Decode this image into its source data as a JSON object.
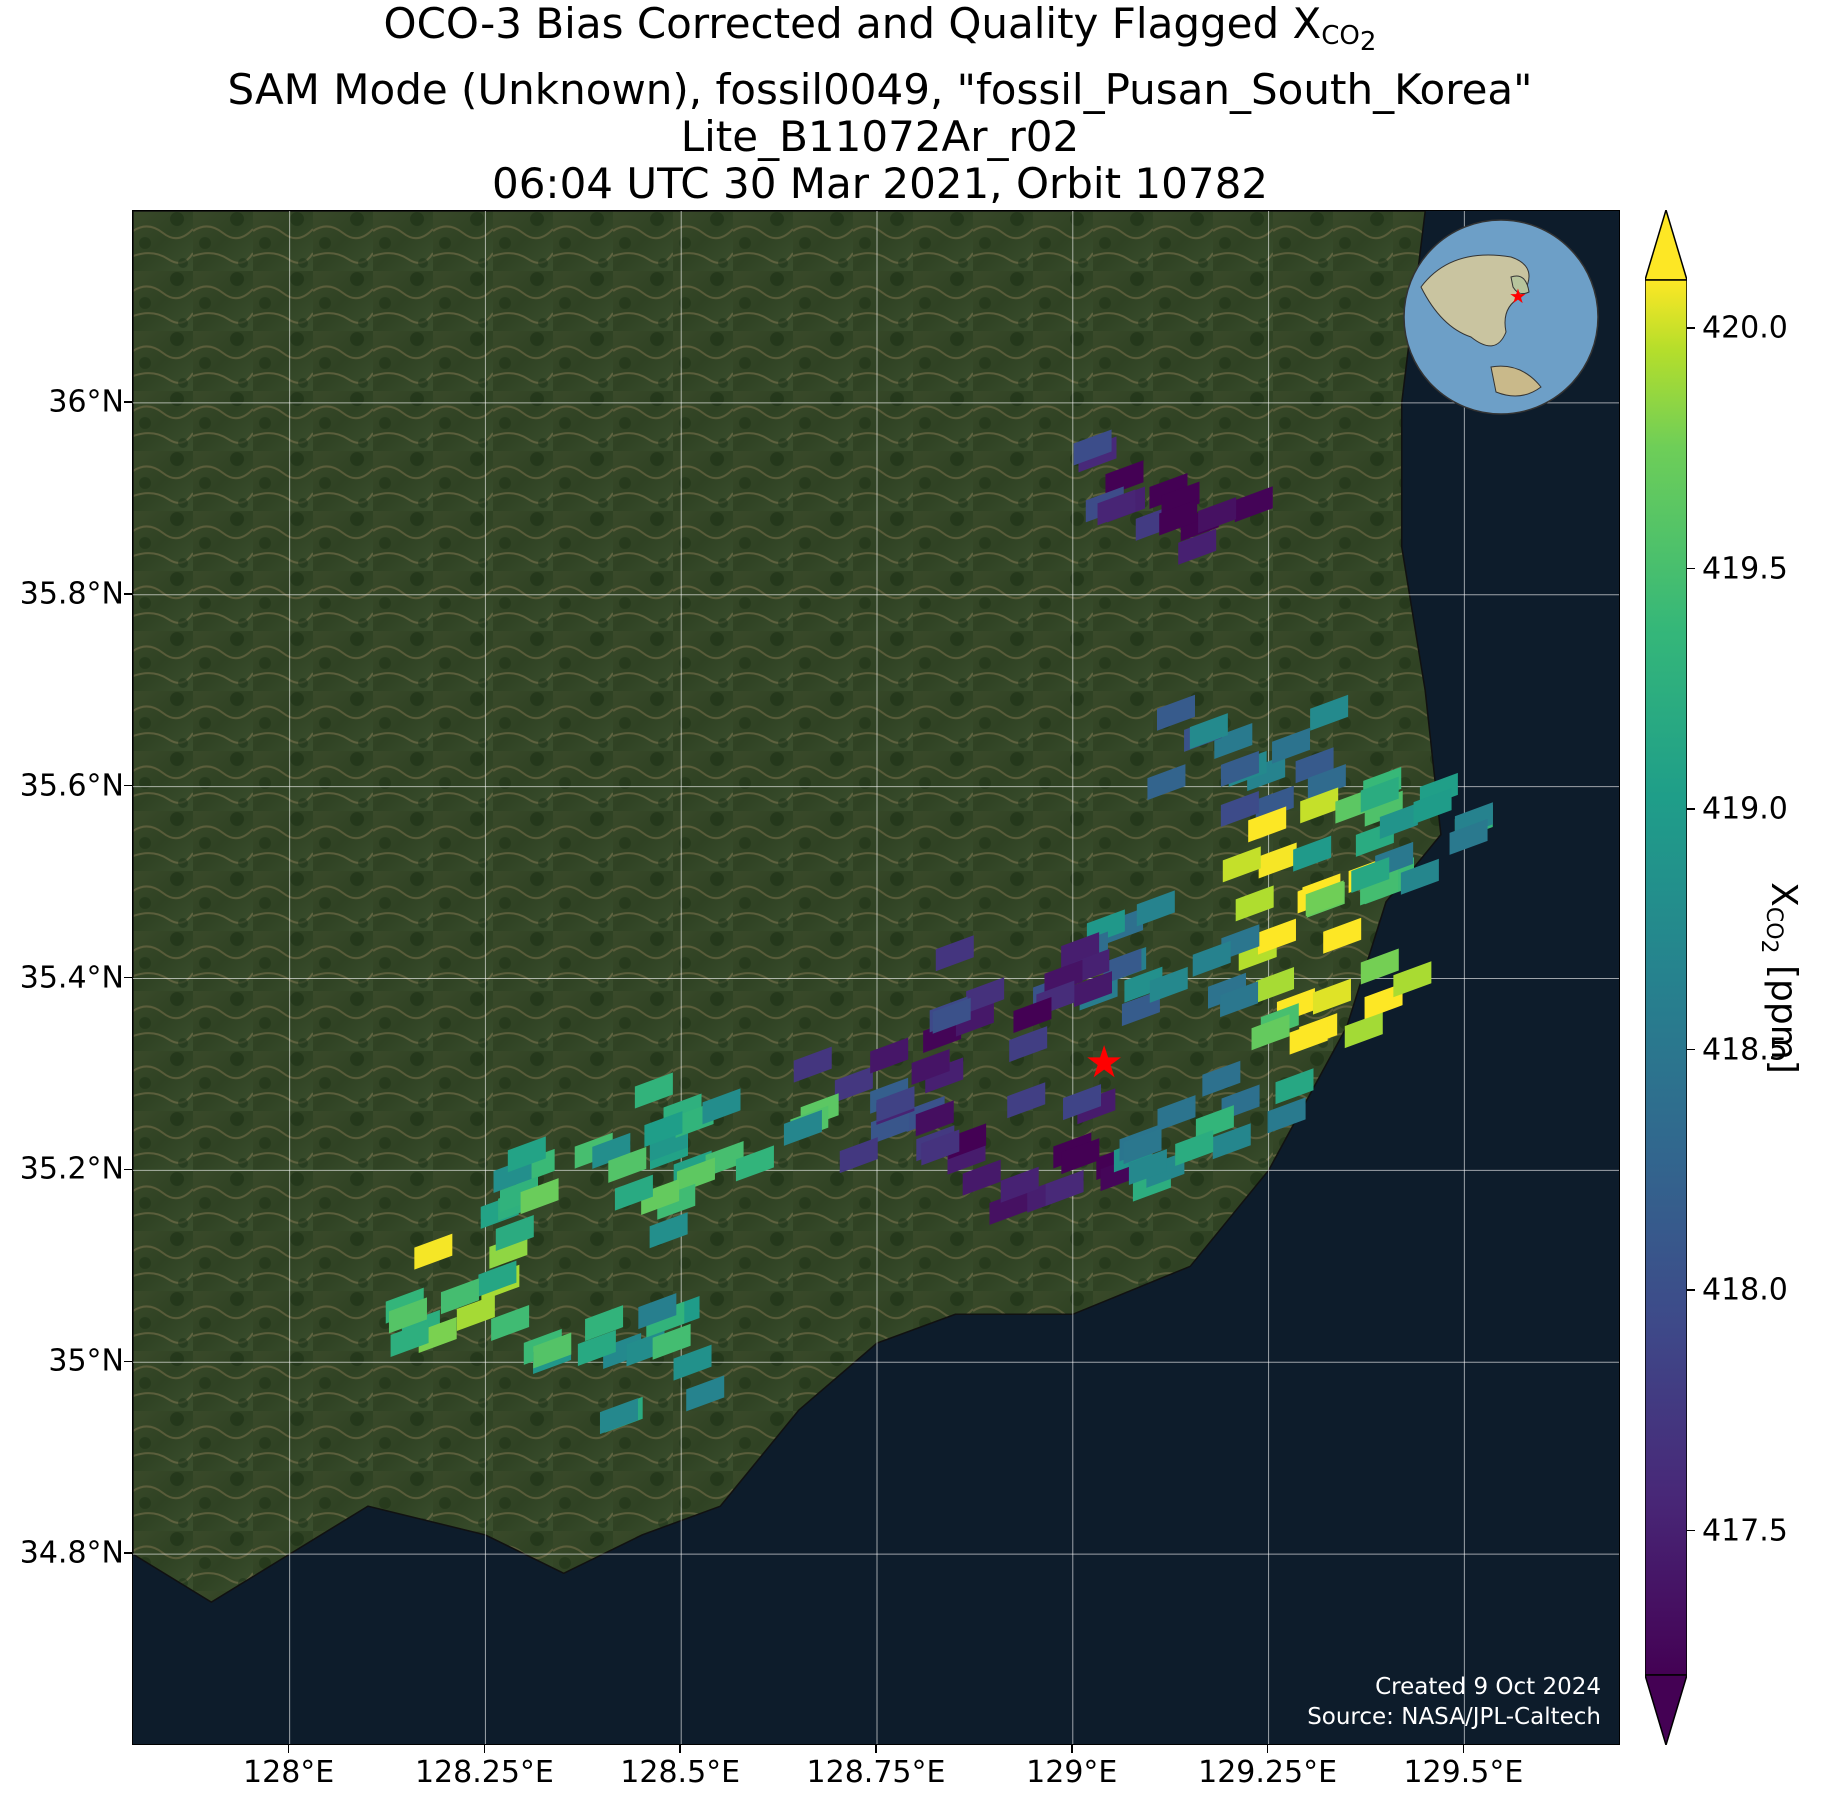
{
  "title": {
    "line1_prefix": "OCO-3 Bias Corrected and Quality Flagged X",
    "line1_sub": "CO",
    "line1_subsub": "2",
    "line2": "SAM Mode (Unknown), fossil0049, \"fossil_Pusan_South_Korea\"",
    "line3": "Lite_B11072Ar_r02",
    "line4": "06:04 UTC 30 Mar 2021, Orbit 10782"
  },
  "credits": {
    "created": "Created 9 Oct 2024",
    "source": "Source: NASA/JPL-Caltech"
  },
  "colorbar": {
    "label_main": "X",
    "label_sub": "CO",
    "label_subsub": "2",
    "label_units": " [ppm]",
    "min": 417.2,
    "max": 420.1,
    "ticks": [
      "417.5",
      "418.0",
      "418.5",
      "419.0",
      "419.5",
      "420.0"
    ],
    "tick_values": [
      417.5,
      418.0,
      418.5,
      419.0,
      419.5,
      420.0
    ],
    "extend": "both",
    "colormap": "viridis"
  },
  "chart_data": {
    "type": "map",
    "projection": "PlateCarree",
    "xlim": [
      127.8,
      129.7
    ],
    "ylim": [
      34.6,
      36.2
    ],
    "x_ticks": [
      128.0,
      128.25,
      128.5,
      128.75,
      129.0,
      129.25,
      129.5
    ],
    "x_tick_labels": [
      "128°E",
      "128.25°E",
      "128.5°E",
      "128.75°E",
      "129°E",
      "129.25°E",
      "129.5°E"
    ],
    "y_ticks": [
      34.8,
      35.0,
      35.2,
      35.4,
      35.6,
      35.8,
      36.0
    ],
    "y_tick_labels": [
      "34.8°N",
      "35°N",
      "35.2°N",
      "35.4°N",
      "35.6°N",
      "35.8°N",
      "36°N"
    ],
    "grid": true,
    "background": "satellite imagery",
    "target_marker": {
      "lon": 129.04,
      "lat": 35.31,
      "symbol": "star",
      "color": "#ff0000"
    },
    "inset_globe": {
      "location": "top-right",
      "marker_color": "#ff0000"
    },
    "clusters": [
      {
        "lon": 129.1,
        "lat": 35.905,
        "value": 417.5
      },
      {
        "lon": 129.2,
        "lat": 35.63,
        "value": 418.4
      },
      {
        "lon": 129.3,
        "lat": 35.54,
        "value": 419.9
      },
      {
        "lon": 129.32,
        "lat": 35.4,
        "value": 420.0
      },
      {
        "lon": 129.38,
        "lat": 35.55,
        "value": 419.0
      },
      {
        "lon": 129.1,
        "lat": 35.43,
        "value": 418.6
      },
      {
        "lon": 128.9,
        "lat": 35.38,
        "value": 417.6
      },
      {
        "lon": 128.95,
        "lat": 35.22,
        "value": 417.5
      },
      {
        "lon": 129.15,
        "lat": 35.25,
        "value": 418.9
      },
      {
        "lon": 128.75,
        "lat": 35.28,
        "value": 417.8
      },
      {
        "lon": 128.55,
        "lat": 35.23,
        "value": 419.2
      },
      {
        "lon": 128.35,
        "lat": 35.2,
        "value": 419.3
      },
      {
        "lon": 128.2,
        "lat": 35.08,
        "value": 419.6
      },
      {
        "lon": 128.4,
        "lat": 35.0,
        "value": 419.1
      }
    ]
  }
}
